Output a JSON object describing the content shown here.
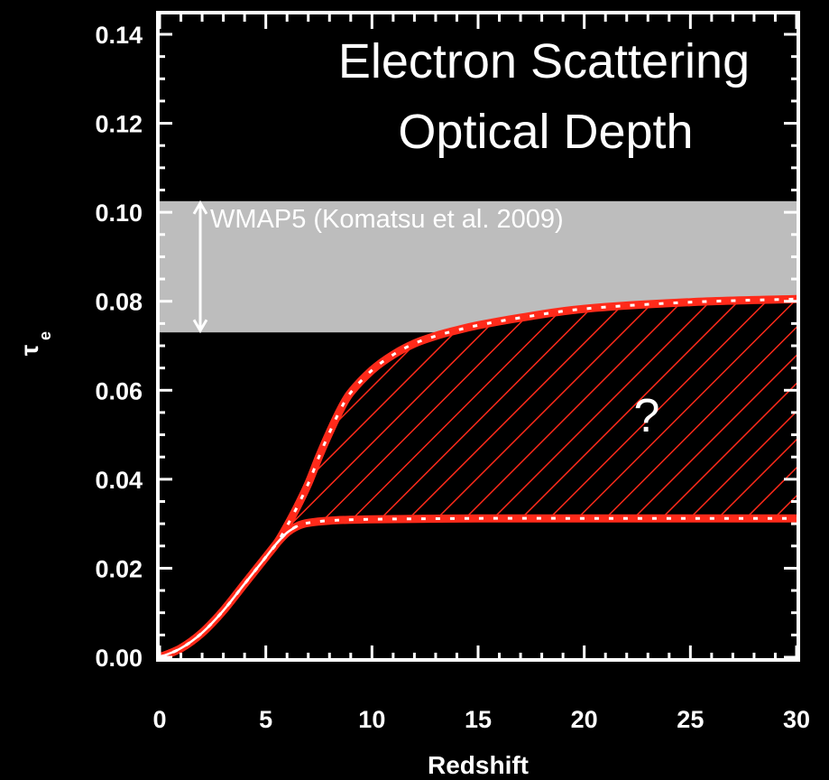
{
  "chart_data": {
    "type": "line",
    "title_lines": [
      "Electron Scattering",
      "Optical Depth"
    ],
    "xlabel": "Redshift",
    "ylabel": "τ",
    "ylabel_sub": "e",
    "xlim": [
      0,
      30
    ],
    "ylim": [
      0,
      0.14
    ],
    "x_ticks": [
      "0",
      "5",
      "10",
      "15",
      "20",
      "25",
      "30"
    ],
    "y_ticks": [
      "0.00",
      "0.02",
      "0.04",
      "0.06",
      "0.08",
      "0.10",
      "0.12",
      "0.14"
    ],
    "band": {
      "label": "WMAP5 (Komatsu et al. 2009)",
      "y_range": [
        0.073,
        0.1025
      ],
      "color": "#bdbdbd"
    },
    "annotation": "?",
    "series": [
      {
        "role": "upper_bound",
        "color": "#ff2a1a",
        "x": [
          0,
          1,
          2,
          3,
          4,
          5,
          5.5,
          6,
          6.5,
          7,
          7.5,
          8,
          8.5,
          9,
          10,
          11,
          12,
          13,
          14,
          15,
          17,
          20,
          25,
          30
        ],
        "y": [
          0,
          0.002,
          0.0055,
          0.0105,
          0.0165,
          0.0225,
          0.0255,
          0.0295,
          0.034,
          0.039,
          0.045,
          0.0505,
          0.0555,
          0.0595,
          0.0645,
          0.068,
          0.0705,
          0.0722,
          0.0735,
          0.0746,
          0.0763,
          0.0783,
          0.0798,
          0.0805
        ]
      },
      {
        "role": "lower_bound",
        "color": "#ff2a1a",
        "x": [
          0,
          1,
          2,
          3,
          4,
          5,
          5.5,
          6,
          6.5,
          7,
          8,
          10,
          15,
          20,
          25,
          30
        ],
        "y": [
          0,
          0.002,
          0.0055,
          0.0105,
          0.0165,
          0.0225,
          0.0255,
          0.028,
          0.0295,
          0.0302,
          0.0307,
          0.031,
          0.0312,
          0.0312,
          0.0312,
          0.0312
        ]
      }
    ],
    "hatch_between_bounds": true
  }
}
